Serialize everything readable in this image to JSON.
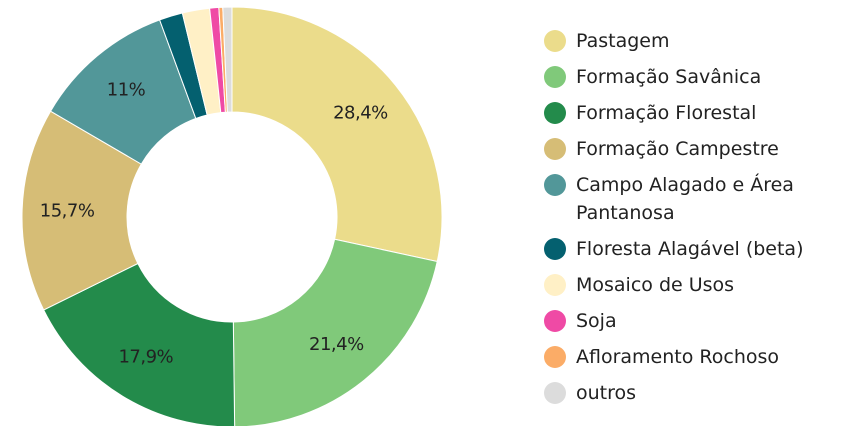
{
  "chart_data": {
    "type": "donut",
    "categories": [
      "Pastagem",
      "Formação Savânica",
      "Formação Florestal",
      "Formação Campestre",
      "Campo Alagado e Área Pantanosa",
      "Floresta Alagável (beta)",
      "Mosaico de Usos",
      "Soja",
      "Afloramento Rochoso",
      "outros"
    ],
    "values": [
      28.4,
      21.4,
      17.9,
      15.7,
      11,
      1.8,
      2.1,
      0.7,
      0.3,
      0.7
    ],
    "value_labels": [
      "28,4%",
      "21,4%",
      "17,9%",
      "15,7%",
      "11%",
      null,
      null,
      null,
      null,
      null
    ],
    "colors": [
      "#ebdc8b",
      "#80c97a",
      "#238b4b",
      "#d6bd76",
      "#529799",
      "#04606f",
      "#fff0c6",
      "#ef4aa5",
      "#fbac67",
      "#dcdcdc"
    ]
  }
}
